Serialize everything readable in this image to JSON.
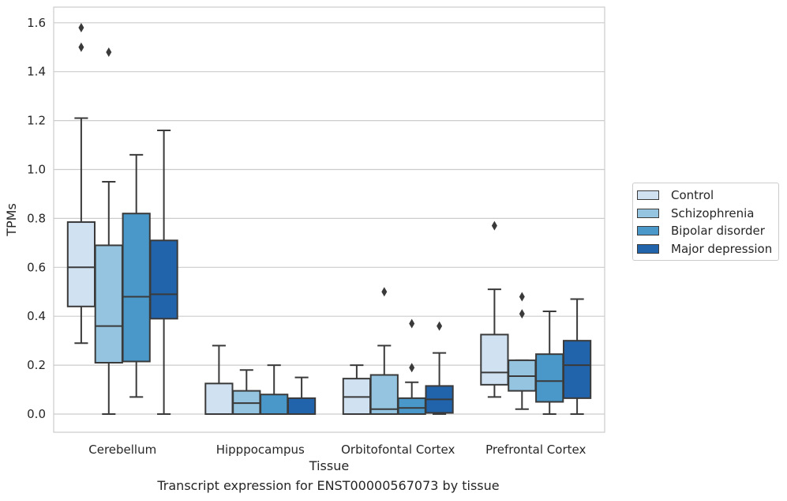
{
  "chart_data": {
    "type": "boxplot",
    "xlabel": "Tissue",
    "ylabel": "TPMs",
    "ylim": [
      -0.075,
      1.66
    ],
    "yticks": [
      0.0,
      0.2,
      0.4,
      0.6,
      0.8,
      1.0,
      1.2,
      1.4,
      1.6
    ],
    "ytick_labels": [
      "0.0",
      "0.2",
      "0.4",
      "0.6",
      "0.8",
      "1.0",
      "1.2",
      "1.4",
      "1.6"
    ],
    "grid": "horizontal",
    "legend_position": "right",
    "categories": [
      "Cerebellum",
      "Hipppocampus",
      "Orbitofontal Cortex",
      "Prefrontal Cortex"
    ],
    "series": [
      {
        "name": "Control",
        "color": "#d0e1f2",
        "boxes": [
          {
            "whisker_low": 0.29,
            "q1": 0.44,
            "median": 0.6,
            "q3": 0.785,
            "whisker_high": 1.21,
            "outliers": [
              1.58,
              1.5
            ]
          },
          {
            "whisker_low": 0.0,
            "q1": 0.0,
            "median": 0.0,
            "q3": 0.125,
            "whisker_high": 0.28,
            "outliers": []
          },
          {
            "whisker_low": 0.0,
            "q1": 0.0,
            "median": 0.07,
            "q3": 0.145,
            "whisker_high": 0.2,
            "outliers": []
          },
          {
            "whisker_low": 0.07,
            "q1": 0.12,
            "median": 0.17,
            "q3": 0.325,
            "whisker_high": 0.51,
            "outliers": [
              0.77
            ]
          }
        ]
      },
      {
        "name": "Schizophrenia",
        "color": "#94c4df",
        "boxes": [
          {
            "whisker_low": 0.0,
            "q1": 0.21,
            "median": 0.36,
            "q3": 0.69,
            "whisker_high": 0.95,
            "outliers": [
              1.48
            ]
          },
          {
            "whisker_low": 0.0,
            "q1": 0.0,
            "median": 0.045,
            "q3": 0.095,
            "whisker_high": 0.18,
            "outliers": []
          },
          {
            "whisker_low": 0.0,
            "q1": 0.0,
            "median": 0.02,
            "q3": 0.16,
            "whisker_high": 0.28,
            "outliers": [
              0.5
            ]
          },
          {
            "whisker_low": 0.02,
            "q1": 0.095,
            "median": 0.155,
            "q3": 0.22,
            "whisker_high": 0.22,
            "outliers": [
              0.48,
              0.41
            ]
          }
        ]
      },
      {
        "name": "Bipolar disorder",
        "color": "#4a98c9",
        "boxes": [
          {
            "whisker_low": 0.07,
            "q1": 0.215,
            "median": 0.48,
            "q3": 0.82,
            "whisker_high": 1.06,
            "outliers": []
          },
          {
            "whisker_low": 0.0,
            "q1": 0.0,
            "median": 0.0,
            "q3": 0.08,
            "whisker_high": 0.2,
            "outliers": []
          },
          {
            "whisker_low": 0.0,
            "q1": 0.0,
            "median": 0.025,
            "q3": 0.065,
            "whisker_high": 0.13,
            "outliers": [
              0.37,
              0.19
            ]
          },
          {
            "whisker_low": 0.0,
            "q1": 0.05,
            "median": 0.135,
            "q3": 0.245,
            "whisker_high": 0.42,
            "outliers": []
          }
        ]
      },
      {
        "name": "Major depression",
        "color": "#2264ab",
        "boxes": [
          {
            "whisker_low": 0.0,
            "q1": 0.39,
            "median": 0.49,
            "q3": 0.71,
            "whisker_high": 1.16,
            "outliers": []
          },
          {
            "whisker_low": 0.0,
            "q1": 0.0,
            "median": 0.0,
            "q3": 0.065,
            "whisker_high": 0.15,
            "outliers": []
          },
          {
            "whisker_low": 0.0,
            "q1": 0.005,
            "median": 0.06,
            "q3": 0.115,
            "whisker_high": 0.25,
            "outliers": [
              0.36
            ]
          },
          {
            "whisker_low": 0.0,
            "q1": 0.065,
            "median": 0.2,
            "q3": 0.3,
            "whisker_high": 0.47,
            "outliers": []
          }
        ]
      }
    ]
  },
  "caption": "Transcript expression for ENST00000567073 by tissue"
}
